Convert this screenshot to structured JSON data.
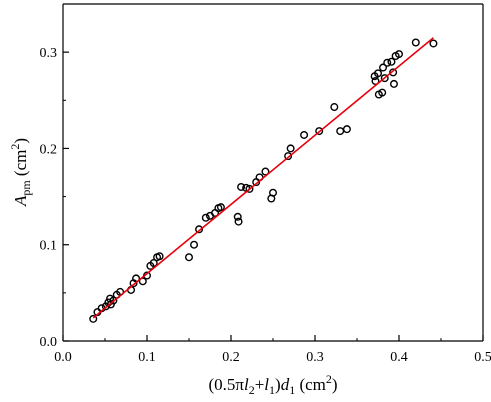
{
  "chart_data": {
    "type": "scatter",
    "title": "",
    "x_axis": {
      "label": {
        "pre": "(0.5π",
        "v1": "l",
        "s1": "2",
        "plus": "+",
        "v2": "l",
        "s2": "1",
        "close": ")",
        "v3": "d",
        "s3": "1",
        "unit": " (cm",
        "unit_exp": "2",
        "unit_close": ")"
      },
      "range": [
        0.0,
        0.5
      ],
      "ticks": [
        0.0,
        0.1,
        0.2,
        0.3,
        0.4,
        0.5
      ],
      "tick_labels": [
        "0.0",
        "0.1",
        "0.2",
        "0.3",
        "0.4",
        "0.5"
      ]
    },
    "y_axis": {
      "label": {
        "var": "A",
        "sub": "pm",
        "unit": " (cm",
        "unit_exp": "2",
        "unit_close": ")"
      },
      "range": [
        0.0,
        0.35
      ],
      "ticks": [
        0.0,
        0.1,
        0.2,
        0.3
      ],
      "tick_labels": [
        "0.0",
        "0.1",
        "0.2",
        "0.3"
      ]
    },
    "grid": false,
    "legend": "none",
    "colors": {
      "points": "#000000",
      "fit_line": "#e8000b",
      "axes": "#000000"
    },
    "series": [
      {
        "marker": "open-circle",
        "points": [
          [
            0.036,
            0.023
          ],
          [
            0.041,
            0.03
          ],
          [
            0.046,
            0.034
          ],
          [
            0.051,
            0.036
          ],
          [
            0.054,
            0.04
          ],
          [
            0.056,
            0.044
          ],
          [
            0.057,
            0.038
          ],
          [
            0.06,
            0.042
          ],
          [
            0.064,
            0.048
          ],
          [
            0.068,
            0.051
          ],
          [
            0.081,
            0.053
          ],
          [
            0.084,
            0.06
          ],
          [
            0.087,
            0.065
          ],
          [
            0.095,
            0.062
          ],
          [
            0.1,
            0.068
          ],
          [
            0.104,
            0.078
          ],
          [
            0.108,
            0.081
          ],
          [
            0.112,
            0.087
          ],
          [
            0.115,
            0.088
          ],
          [
            0.15,
            0.087
          ],
          [
            0.156,
            0.1
          ],
          [
            0.162,
            0.116
          ],
          [
            0.17,
            0.128
          ],
          [
            0.175,
            0.13
          ],
          [
            0.181,
            0.133
          ],
          [
            0.185,
            0.138
          ],
          [
            0.188,
            0.139
          ],
          [
            0.208,
            0.129
          ],
          [
            0.209,
            0.124
          ],
          [
            0.212,
            0.16
          ],
          [
            0.218,
            0.159
          ],
          [
            0.222,
            0.158
          ],
          [
            0.23,
            0.165
          ],
          [
            0.234,
            0.17
          ],
          [
            0.241,
            0.176
          ],
          [
            0.248,
            0.148
          ],
          [
            0.25,
            0.154
          ],
          [
            0.268,
            0.192
          ],
          [
            0.271,
            0.2
          ],
          [
            0.287,
            0.214
          ],
          [
            0.305,
            0.218
          ],
          [
            0.323,
            0.243
          ],
          [
            0.33,
            0.218
          ],
          [
            0.338,
            0.22
          ],
          [
            0.371,
            0.275
          ],
          [
            0.372,
            0.27
          ],
          [
            0.375,
            0.278
          ],
          [
            0.376,
            0.256
          ],
          [
            0.38,
            0.258
          ],
          [
            0.381,
            0.284
          ],
          [
            0.383,
            0.273
          ],
          [
            0.386,
            0.289
          ],
          [
            0.391,
            0.29
          ],
          [
            0.393,
            0.279
          ],
          [
            0.394,
            0.267
          ],
          [
            0.396,
            0.296
          ],
          [
            0.4,
            0.298
          ],
          [
            0.42,
            0.31
          ],
          [
            0.441,
            0.309
          ]
        ]
      }
    ],
    "fit_line": {
      "from": [
        0.036,
        0.024
      ],
      "to": [
        0.441,
        0.315
      ]
    }
  }
}
